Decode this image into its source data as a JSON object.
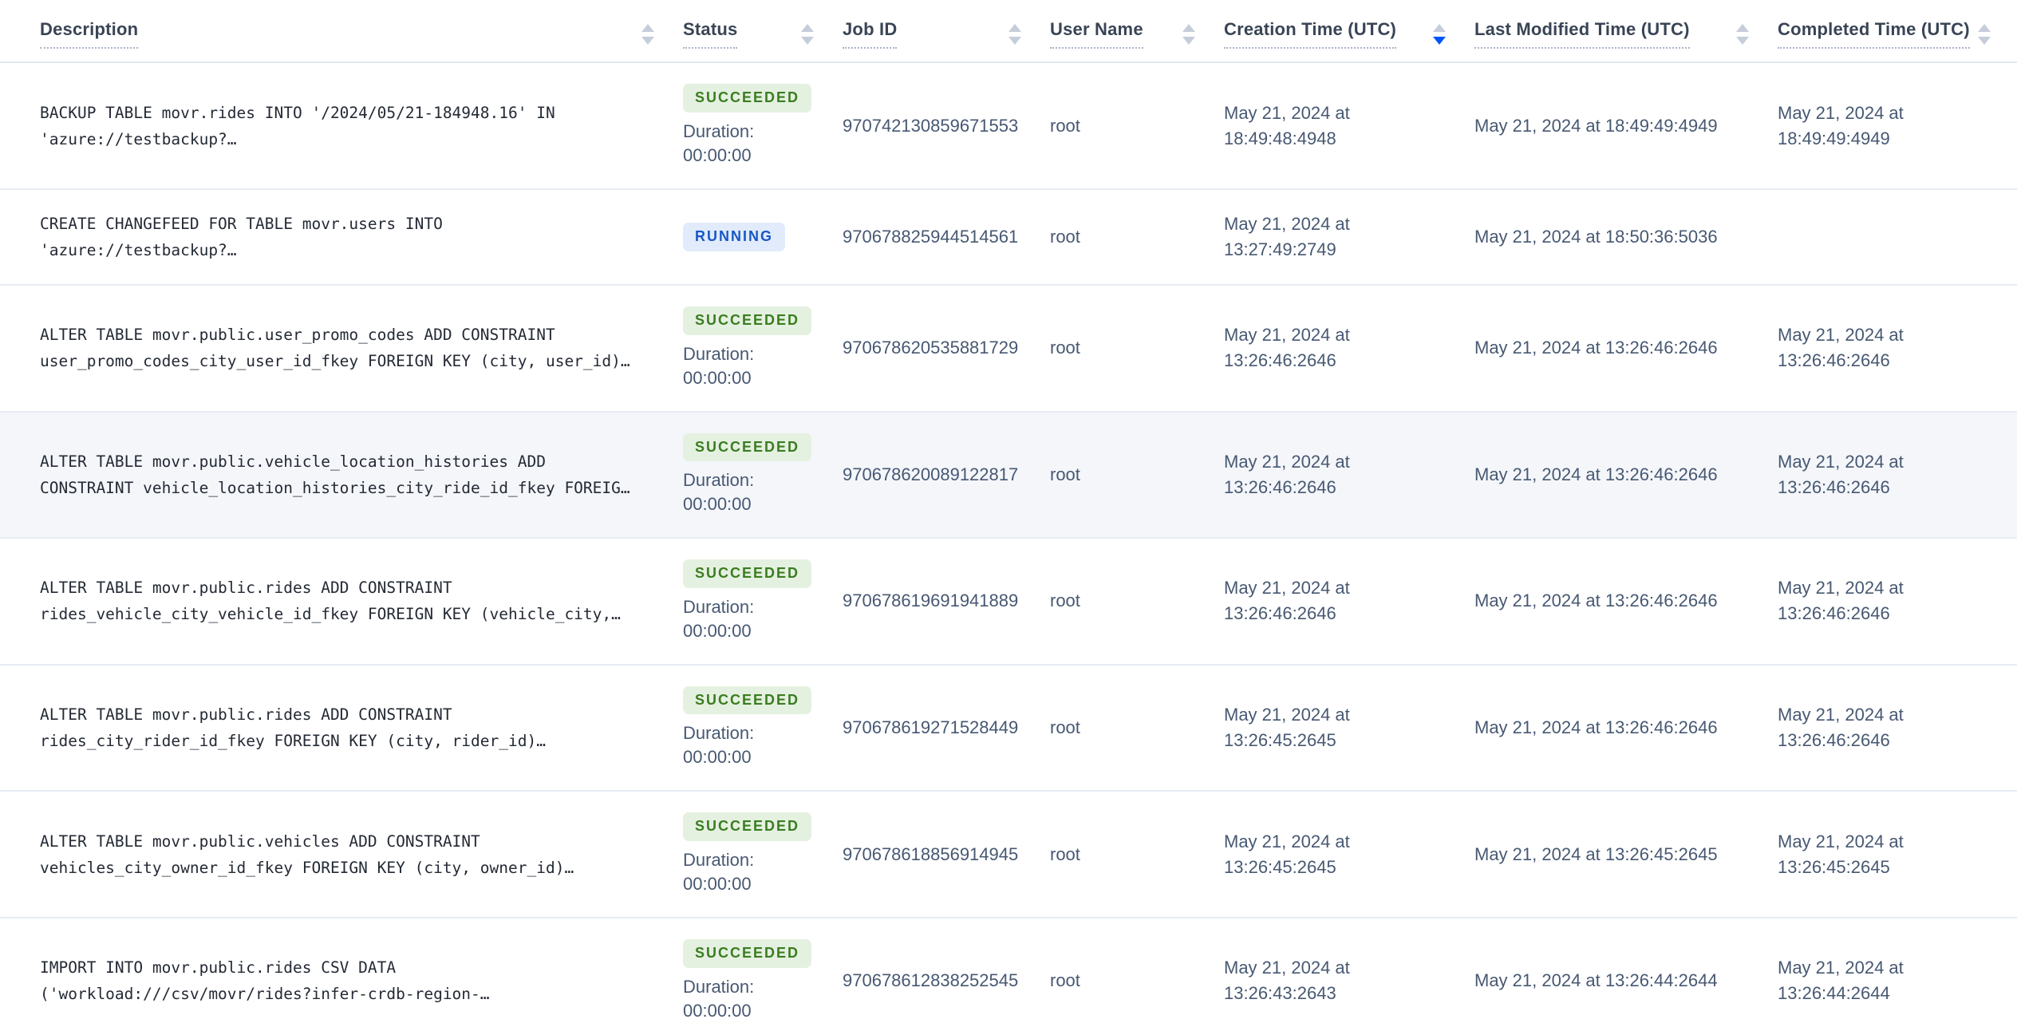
{
  "table": {
    "duration_label": "Duration:",
    "columns": [
      {
        "label": "Description",
        "sort": "none"
      },
      {
        "label": "Status",
        "sort": "none"
      },
      {
        "label": "Job ID",
        "sort": "none"
      },
      {
        "label": "User Name",
        "sort": "none"
      },
      {
        "label": "Creation Time (UTC)",
        "sort": "desc"
      },
      {
        "label": "Last Modified Time (UTC)",
        "sort": "none"
      },
      {
        "label": "Completed Time (UTC)",
        "sort": "none"
      }
    ],
    "rows": [
      {
        "description_lines": [
          "BACKUP TABLE movr.rides INTO '/2024/05/21-184948.16' IN",
          "'azure://testbackup?…"
        ],
        "status": "SUCCEEDED",
        "duration": "00:00:00",
        "job_id": "970742130859671553",
        "user_name": "root",
        "creation_time": "May 21, 2024 at 18:49:48:4948",
        "last_modified_time": "May 21, 2024 at 18:49:49:4949",
        "completed_time": "May 21, 2024 at 18:49:49:4949",
        "highlighted": false
      },
      {
        "description_lines": [
          "CREATE CHANGEFEED FOR TABLE movr.users INTO",
          "'azure://testbackup?…"
        ],
        "status": "RUNNING",
        "duration": "",
        "job_id": "970678825944514561",
        "user_name": "root",
        "creation_time": "May 21, 2024 at 13:27:49:2749",
        "last_modified_time": "May 21, 2024 at 18:50:36:5036",
        "completed_time": "",
        "highlighted": false
      },
      {
        "description_lines": [
          "ALTER TABLE movr.public.user_promo_codes ADD CONSTRAINT",
          "user_promo_codes_city_user_id_fkey FOREIGN KEY (city, user_id)…"
        ],
        "status": "SUCCEEDED",
        "duration": "00:00:00",
        "job_id": "970678620535881729",
        "user_name": "root",
        "creation_time": "May 21, 2024 at 13:26:46:2646",
        "last_modified_time": "May 21, 2024 at 13:26:46:2646",
        "completed_time": "May 21, 2024 at 13:26:46:2646",
        "highlighted": false
      },
      {
        "description_lines": [
          "ALTER TABLE movr.public.vehicle_location_histories ADD",
          "CONSTRAINT vehicle_location_histories_city_ride_id_fkey FOREIG…"
        ],
        "status": "SUCCEEDED",
        "duration": "00:00:00",
        "job_id": "970678620089122817",
        "user_name": "root",
        "creation_time": "May 21, 2024 at 13:26:46:2646",
        "last_modified_time": "May 21, 2024 at 13:26:46:2646",
        "completed_time": "May 21, 2024 at 13:26:46:2646",
        "highlighted": true
      },
      {
        "description_lines": [
          "ALTER TABLE movr.public.rides ADD CONSTRAINT",
          "rides_vehicle_city_vehicle_id_fkey FOREIGN KEY (vehicle_city,…"
        ],
        "status": "SUCCEEDED",
        "duration": "00:00:00",
        "job_id": "970678619691941889",
        "user_name": "root",
        "creation_time": "May 21, 2024 at 13:26:46:2646",
        "last_modified_time": "May 21, 2024 at 13:26:46:2646",
        "completed_time": "May 21, 2024 at 13:26:46:2646",
        "highlighted": false
      },
      {
        "description_lines": [
          "ALTER TABLE movr.public.rides ADD CONSTRAINT",
          "rides_city_rider_id_fkey FOREIGN KEY (city, rider_id)…"
        ],
        "status": "SUCCEEDED",
        "duration": "00:00:00",
        "job_id": "970678619271528449",
        "user_name": "root",
        "creation_time": "May 21, 2024 at 13:26:45:2645",
        "last_modified_time": "May 21, 2024 at 13:26:46:2646",
        "completed_time": "May 21, 2024 at 13:26:46:2646",
        "highlighted": false
      },
      {
        "description_lines": [
          "ALTER TABLE movr.public.vehicles ADD CONSTRAINT",
          "vehicles_city_owner_id_fkey FOREIGN KEY (city, owner_id)…"
        ],
        "status": "SUCCEEDED",
        "duration": "00:00:00",
        "job_id": "970678618856914945",
        "user_name": "root",
        "creation_time": "May 21, 2024 at 13:26:45:2645",
        "last_modified_time": "May 21, 2024 at 13:26:45:2645",
        "completed_time": "May 21, 2024 at 13:26:45:2645",
        "highlighted": false
      },
      {
        "description_lines": [
          "IMPORT INTO movr.public.rides CSV DATA",
          "('workload:///csv/movr/rides?infer-crdb-region-…"
        ],
        "status": "SUCCEEDED",
        "duration": "00:00:00",
        "job_id": "970678612838252545",
        "user_name": "root",
        "creation_time": "May 21, 2024 at 13:26:43:2643",
        "last_modified_time": "May 21, 2024 at 13:26:44:2644",
        "completed_time": "May 21, 2024 at 13:26:44:2644",
        "highlighted": false
      }
    ]
  },
  "colors": {
    "succeeded_bg": "#e5f1e0",
    "succeeded_text": "#3a7d21",
    "running_bg": "#e1ebfb",
    "running_text": "#1658c6",
    "sort_active": "#0055ff",
    "highlight_row_bg": "#f4f6fa"
  }
}
